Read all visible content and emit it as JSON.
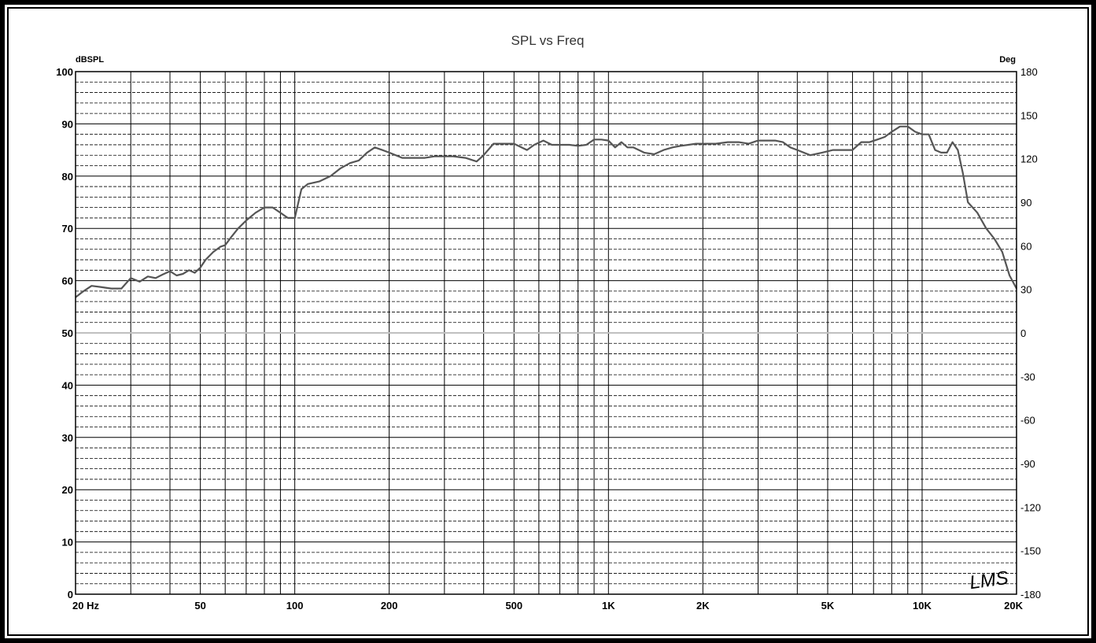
{
  "chart_data": {
    "type": "line",
    "title": "SPL vs Freq",
    "left_axis_label": "dBSPL",
    "right_axis_label": "Deg",
    "x_scale": "log",
    "xlim": [
      20,
      20000
    ],
    "ylim": [
      0,
      100
    ],
    "y2lim": [
      -180,
      180
    ],
    "x_tick_labels": [
      {
        "value": 20,
        "label": "20  Hz"
      },
      {
        "value": 50,
        "label": "50"
      },
      {
        "value": 100,
        "label": "100"
      },
      {
        "value": 200,
        "label": "200"
      },
      {
        "value": 500,
        "label": "500"
      },
      {
        "value": 1000,
        "label": "1K"
      },
      {
        "value": 2000,
        "label": "2K"
      },
      {
        "value": 5000,
        "label": "5K"
      },
      {
        "value": 10000,
        "label": "10K"
      },
      {
        "value": 20000,
        "label": "20K"
      }
    ],
    "y_ticks": [
      0,
      10,
      20,
      30,
      40,
      50,
      60,
      70,
      80,
      90,
      100
    ],
    "y2_ticks": [
      -180,
      -150,
      -120,
      -90,
      -60,
      -30,
      0,
      30,
      60,
      90,
      120,
      150,
      180
    ],
    "grid": true,
    "watermark": "LMS",
    "colors": {
      "curve": "#555555",
      "grid": "#000000",
      "zero_line": "#c0c0c0",
      "frame": "#000000"
    },
    "series": [
      {
        "x": [
          20,
          21,
          22.5,
          24,
          26,
          28,
          30,
          32,
          34,
          36,
          38,
          40,
          42,
          44,
          46,
          48,
          50,
          52,
          55,
          58,
          60,
          63,
          66,
          70,
          75,
          80,
          85,
          90,
          95,
          100,
          105,
          110,
          120,
          130,
          140,
          150,
          160,
          170,
          180,
          190,
          200,
          220,
          240,
          260,
          280,
          300,
          320,
          350,
          380,
          400,
          430,
          460,
          500,
          550,
          580,
          620,
          660,
          700,
          750,
          800,
          850,
          900,
          950,
          1000,
          1050,
          1100,
          1150,
          1200,
          1300,
          1400,
          1500,
          1600,
          1700,
          1800,
          1900,
          2000,
          2200,
          2400,
          2600,
          2800,
          3000,
          3200,
          3400,
          3600,
          3800,
          4000,
          4400,
          4800,
          5200,
          5600,
          6000,
          6400,
          6800,
          7200,
          7600,
          8000,
          8500,
          9000,
          9500,
          10000,
          10500,
          11000,
          11500,
          12000,
          12500,
          13000,
          13500,
          14000,
          15000,
          16000,
          17000,
          18000,
          19000,
          20000
        ],
        "values": [
          56.8,
          57.8,
          59.0,
          58.8,
          58.5,
          58.5,
          60.5,
          59.8,
          60.8,
          60.5,
          61.2,
          61.8,
          61.0,
          61.3,
          62.0,
          61.5,
          62.5,
          64.0,
          65.5,
          66.5,
          66.8,
          68.5,
          70.0,
          71.5,
          73.0,
          74.0,
          74.0,
          73.0,
          72.0,
          72.0,
          77.5,
          78.5,
          79.0,
          80.0,
          81.5,
          82.5,
          83.0,
          84.5,
          85.5,
          85.0,
          84.5,
          83.5,
          83.5,
          83.5,
          83.8,
          83.8,
          83.8,
          83.5,
          82.8,
          84.0,
          86.2,
          86.2,
          86.2,
          85.0,
          86.0,
          86.8,
          86.0,
          86.0,
          86.0,
          85.8,
          86.0,
          87.0,
          87.0,
          86.8,
          85.5,
          86.5,
          85.5,
          85.5,
          84.5,
          84.2,
          85.0,
          85.5,
          85.8,
          86.0,
          86.2,
          86.2,
          86.2,
          86.5,
          86.5,
          86.2,
          86.8,
          86.8,
          86.8,
          86.5,
          85.5,
          85.0,
          84.0,
          84.5,
          85.0,
          85.0,
          85.0,
          86.5,
          86.5,
          87.0,
          87.5,
          88.5,
          89.5,
          89.5,
          88.5,
          88.0,
          88.0,
          85.0,
          84.5,
          84.5,
          86.5,
          85.0,
          80.5,
          75.0,
          73.0,
          70.0,
          68.0,
          65.5,
          61.0,
          58.5
        ]
      }
    ]
  }
}
